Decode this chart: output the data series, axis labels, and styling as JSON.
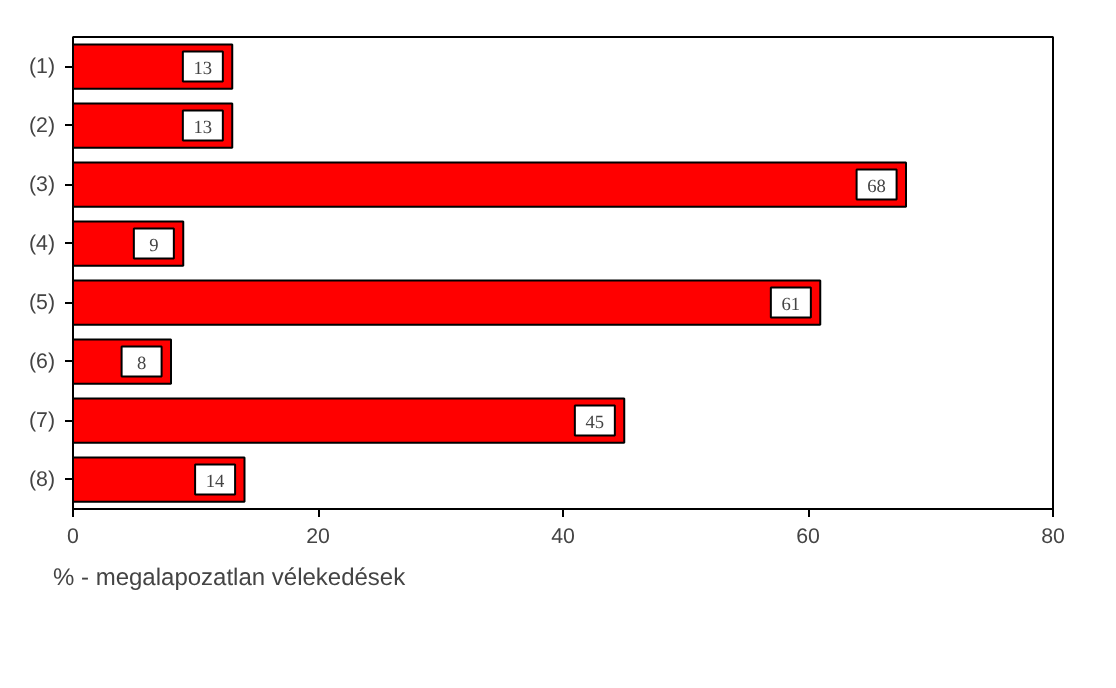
{
  "chart_data": {
    "type": "bar",
    "orientation": "horizontal",
    "categories": [
      "(1)",
      "(2)",
      "(3)",
      "(4)",
      "(5)",
      "(6)",
      "(7)",
      "(8)"
    ],
    "values": [
      13,
      13,
      68,
      9,
      61,
      8,
      45,
      14
    ],
    "color": "#ff0000",
    "data_labels": true,
    "xlim": [
      0,
      80
    ],
    "xticks": [
      0,
      20,
      40,
      60,
      80
    ],
    "xlabel": "% - megalapozatlan vélekedések",
    "grid": false
  }
}
